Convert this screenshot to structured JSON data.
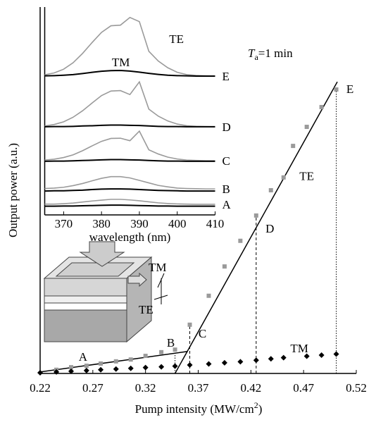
{
  "chart_data": [
    {
      "type": "scatter",
      "x_label": {
        "text": "Pump intensity (MW/cm",
        "sup": "2",
        "end": ")"
      },
      "y_label": "Output power (a.u.)",
      "xlim": [
        0.22,
        0.52
      ],
      "xticks": [
        0.22,
        0.27,
        0.32,
        0.37,
        0.42,
        0.47,
        0.52
      ],
      "ylim": [
        0,
        100
      ],
      "series": [
        {
          "name": "TE",
          "color": "#9a9a9a",
          "marker": "square",
          "x": [
            0.2354,
            0.2494,
            0.264,
            0.2775,
            0.292,
            0.306,
            0.32,
            0.335,
            0.348,
            0.362,
            0.38,
            0.395,
            0.41,
            0.425,
            0.439,
            0.451,
            0.46,
            0.473,
            0.487,
            0.501
          ],
          "values": [
            1.0,
            1.7,
            2.1,
            2.7,
            3.3,
            3.8,
            4.8,
            5.8,
            6.5,
            13.3,
            21.2,
            29.2,
            36.2,
            43.1,
            50.0,
            53.5,
            62.1,
            67.3,
            72.7,
            77.5
          ]
        },
        {
          "name": "TM",
          "color": "#000000",
          "marker": "diamond",
          "x": [
            0.22,
            0.2354,
            0.2494,
            0.264,
            0.2775,
            0.292,
            0.306,
            0.32,
            0.335,
            0.348,
            0.362,
            0.38,
            0.395,
            0.41,
            0.425,
            0.439,
            0.451,
            0.473,
            0.487,
            0.501
          ],
          "values": [
            0.2,
            0.4,
            0.6,
            0.8,
            1.0,
            1.2,
            1.4,
            1.6,
            1.8,
            2.0,
            2.3,
            2.6,
            2.9,
            3.2,
            3.6,
            4.0,
            4.3,
            4.7,
            5.0,
            5.3
          ]
        }
      ],
      "fit_lines": [
        {
          "x": [
            0.22,
            0.36
          ],
          "y": [
            0.4,
            6.0
          ]
        },
        {
          "x": [
            0.348,
            0.502
          ],
          "y": [
            0,
            79.6
          ]
        }
      ],
      "drop_lines_at": [
        8,
        9,
        13,
        19
      ],
      "annotations": [
        {
          "text": "A",
          "x": 0.2607,
          "y": 4.2
        },
        {
          "text": "B",
          "x": 0.344,
          "y": 8.1
        },
        {
          "text": "C",
          "x": 0.374,
          "y": 10.6
        },
        {
          "text": "D",
          "x": 0.438,
          "y": 39.2
        },
        {
          "text": "E",
          "x": 0.514,
          "y": 77.3
        },
        {
          "text": "TE",
          "x": 0.473,
          "y": 53.5
        },
        {
          "text": "TM",
          "x": 0.466,
          "y": 6.5
        }
      ],
      "condition": {
        "symbol": "T",
        "sub": "a",
        "rest": "=1 min"
      },
      "schematic_labels": [
        "TM",
        "TE"
      ]
    },
    {
      "type": "line",
      "x_label": "wavelength (nm)",
      "xlim": [
        365,
        410
      ],
      "xticks": [
        370,
        380,
        390,
        400,
        410
      ],
      "ylim": [
        0,
        100
      ],
      "x": [
        365,
        367.5,
        370,
        372.5,
        375,
        377.5,
        380,
        382.5,
        385,
        387.5,
        390,
        392.5,
        395,
        397.5,
        400,
        402.5,
        405,
        407.5,
        410
      ],
      "curve_labels": [
        "E",
        "D",
        "C",
        "B",
        "A"
      ],
      "annotations": [
        {
          "text": "TE",
          "x": 399.8,
          "y": 84
        },
        {
          "text": "TM",
          "x": 385.1,
          "y": 72.9
        }
      ],
      "series": [
        {
          "color": "#9a9a9a",
          "values": [
            67.4,
            68.3,
            70.1,
            73.2,
            77.7,
            82.9,
            87.8,
            91.0,
            91.3,
            95.0,
            93.0,
            78.7,
            74.0,
            70.8,
            68.6,
            67.5,
            67.1,
            66.9,
            66.8
          ]
        },
        {
          "color": "#000000",
          "values": [
            66.9,
            67.0,
            67.2,
            67.5,
            68.0,
            68.6,
            69.1,
            69.4,
            69.5,
            69.2,
            68.7,
            68.1,
            67.6,
            67.2,
            67.0,
            66.9,
            66.8,
            66.8,
            66.8
          ]
        },
        {
          "color": "#9a9a9a",
          "values": [
            42.8,
            43.5,
            44.8,
            47.0,
            50.1,
            53.8,
            57.4,
            59.6,
            59.8,
            57.9,
            64.0,
            50.9,
            47.5,
            45.2,
            43.7,
            42.9,
            42.6,
            42.5,
            42.4
          ]
        },
        {
          "color": "#000000",
          "values": [
            42.4,
            42.5,
            42.5,
            42.6,
            42.8,
            42.9,
            43.1,
            43.2,
            43.2,
            43.1,
            43.0,
            42.8,
            42.6,
            42.5,
            42.5,
            42.4,
            42.4,
            42.4,
            42.4
          ]
        },
        {
          "color": "#9a9a9a",
          "values": [
            26.4,
            26.8,
            27.6,
            28.9,
            30.9,
            33.2,
            35.4,
            36.8,
            36.9,
            35.7,
            40.3,
            31.3,
            29.3,
            27.8,
            26.9,
            26.4,
            26.2,
            26.1,
            26.1
          ]
        },
        {
          "color": "#000000",
          "values": [
            25.8,
            25.9,
            25.9,
            26.0,
            26.2,
            26.3,
            26.5,
            26.6,
            26.6,
            26.5,
            26.4,
            26.2,
            26.0,
            25.9,
            25.9,
            25.8,
            25.8,
            25.8,
            25.8
          ]
        },
        {
          "color": "#9a9a9a",
          "values": [
            12.7,
            12.9,
            13.3,
            14.1,
            15.1,
            16.4,
            17.6,
            18.4,
            18.4,
            17.8,
            16.6,
            15.4,
            14.2,
            13.5,
            12.9,
            12.7,
            12.6,
            12.5,
            12.5
          ]
        },
        {
          "color": "#000000",
          "values": [
            11.5,
            11.6,
            11.6,
            11.8,
            11.9,
            12.2,
            12.4,
            12.5,
            12.5,
            12.4,
            12.2,
            12.0,
            11.8,
            11.7,
            11.6,
            11.5,
            11.5,
            11.5,
            11.5
          ]
        },
        {
          "color": "#9a9a9a",
          "values": [
            5.2,
            5.2,
            5.4,
            5.7,
            6.2,
            6.7,
            7.1,
            7.5,
            7.5,
            7.2,
            6.8,
            6.3,
            5.8,
            5.5,
            5.3,
            5.2,
            5.1,
            5.1,
            5.1
          ]
        },
        {
          "color": "#000000",
          "values": [
            4.2,
            4.2,
            4.3,
            4.3,
            4.4,
            4.5,
            4.6,
            4.7,
            4.7,
            4.6,
            4.5,
            4.4,
            4.3,
            4.3,
            4.2,
            4.2,
            4.2,
            4.2,
            4.2
          ]
        }
      ]
    }
  ]
}
